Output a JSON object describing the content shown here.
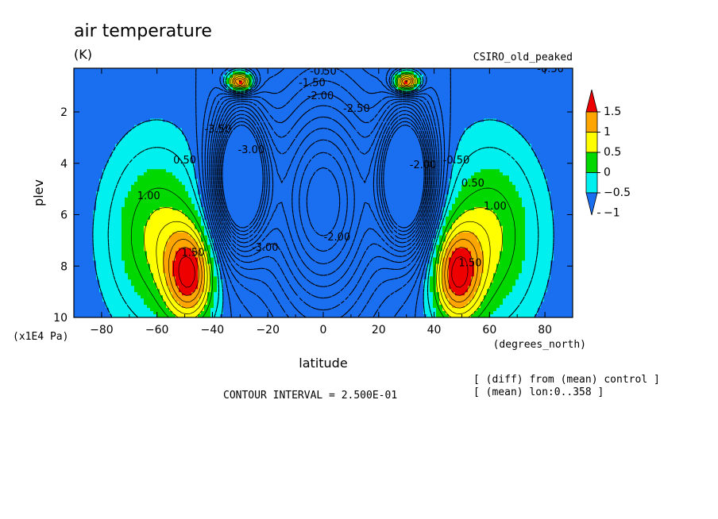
{
  "chart_data": {
    "type": "heatmap",
    "title": "air temperature",
    "units": "(K)",
    "source_label": "CSIRO_old_peaked",
    "xlabel": "latitude",
    "x_units": "(degrees_north)",
    "ylabel": "plev",
    "y_units": "(x1E4 Pa)",
    "xlim": [
      -90,
      90
    ],
    "ylim": [
      0.3,
      10
    ],
    "y_inverted": true,
    "x_ticks": [
      -80,
      -60,
      -40,
      -20,
      0,
      20,
      40,
      60,
      80
    ],
    "x_tick_labels": [
      "−80",
      "−60",
      "−40",
      "−20",
      "0",
      "20",
      "40",
      "60",
      "80"
    ],
    "y_ticks": [
      2,
      4,
      6,
      8,
      10
    ],
    "y_tick_labels": [
      "2",
      "4",
      "6",
      "8",
      "10"
    ],
    "contour_interval_text": "CONTOUR INTERVAL = 2.500E-01",
    "notes": [
      "[ (diff) from (mean) control ]",
      "[ (mean) lon:0..358 ]"
    ],
    "colorbar": {
      "levels": [
        -1,
        -0.5,
        0,
        0.5,
        1,
        1.5
      ],
      "level_labels": [
        "−1",
        "−0.5",
        "0",
        "0.5",
        "1",
        "1.5"
      ],
      "colors": [
        "#1a6ef0",
        "#00f0f0",
        "#00d800",
        "#ffff00",
        "#ffa500",
        "#ee0000"
      ]
    },
    "features": [
      {
        "kind": "warm",
        "lat": -48,
        "plev": 8.4,
        "peak": 2.0,
        "sx": 9,
        "sy": 1.9
      },
      {
        "kind": "warm",
        "lat": 48,
        "plev": 8.4,
        "peak": 2.0,
        "sx": 9,
        "sy": 1.9
      },
      {
        "kind": "warm",
        "lat": -60,
        "plev": 6.8,
        "peak": 1.3,
        "sx": 18,
        "sy": 3.5
      },
      {
        "kind": "warm",
        "lat": 60,
        "plev": 6.8,
        "peak": 1.3,
        "sx": 18,
        "sy": 3.5
      },
      {
        "kind": "warm",
        "lat": -30,
        "plev": 0.85,
        "peak": 3.2,
        "sx": 5,
        "sy": 0.45
      },
      {
        "kind": "warm",
        "lat": 30,
        "plev": 0.85,
        "peak": 3.2,
        "sx": 5,
        "sy": 0.45
      },
      {
        "kind": "cold",
        "lat": -30,
        "plev": 4.5,
        "peak": -5.5,
        "sx": 9,
        "sy": 2.6
      },
      {
        "kind": "cold",
        "lat": 30,
        "plev": 4.5,
        "peak": -5.5,
        "sx": 9,
        "sy": 2.6
      },
      {
        "kind": "cold",
        "lat": 0,
        "plev": 5.5,
        "peak": -3.0,
        "sx": 20,
        "sy": 4.5
      }
    ],
    "contour_labels": [
      {
        "text": "1.00",
        "lat": -63,
        "plev": 5.4
      },
      {
        "text": "1.00",
        "lat": 62,
        "plev": 5.8
      },
      {
        "text": "1.50",
        "lat": -47,
        "plev": 7.6
      },
      {
        "text": "1.50",
        "lat": 53,
        "plev": 8.0
      },
      {
        "text": "0.50",
        "lat": -50,
        "plev": 4.0
      },
      {
        "text": "0.50",
        "lat": 54,
        "plev": 4.9
      },
      {
        "text": "-0.50",
        "lat": 48,
        "plev": 4.0
      },
      {
        "text": "-2.00",
        "lat": 5,
        "plev": 7.0
      },
      {
        "text": "-3.00",
        "lat": -21,
        "plev": 7.4
      },
      {
        "text": "-3.50",
        "lat": -38,
        "plev": 2.8
      },
      {
        "text": "-3.00",
        "lat": -26,
        "plev": 3.6
      },
      {
        "text": "-2.00",
        "lat": 36,
        "plev": 4.2
      },
      {
        "text": "-2.00",
        "lat": -1,
        "plev": 1.5
      },
      {
        "text": "-1.50",
        "lat": -4,
        "plev": 1.0
      },
      {
        "text": "-0.50",
        "lat": 0,
        "plev": 0.55
      },
      {
        "text": "-2.50",
        "lat": 12,
        "plev": 2.0
      },
      {
        "text": "-0.50",
        "lat": 82,
        "plev": 0.45
      }
    ]
  }
}
